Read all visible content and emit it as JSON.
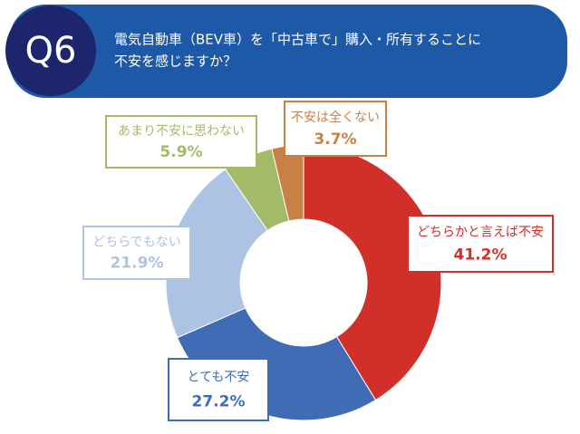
{
  "chart_data": {
    "type": "donut",
    "question_number": "Q6",
    "title": [
      "電気自動車（BEV車）を「中古車で」購入・所有することに",
      "不安を感じますか？"
    ],
    "categories": [
      "どちらかと言えば不安",
      "とても不安",
      "どちらでもない",
      "あまり不安に思わない",
      "不安は全くない"
    ],
    "values": [
      41.2,
      27.2,
      21.9,
      5.9,
      3.7
    ],
    "value_labels": [
      "41.2%",
      "27.2%",
      "21.9%",
      "5.9%",
      "3.7%"
    ],
    "colors": [
      "#d1302a",
      "#3f6cb4",
      "#adc3e3",
      "#a3bb69",
      "#c98045"
    ]
  }
}
